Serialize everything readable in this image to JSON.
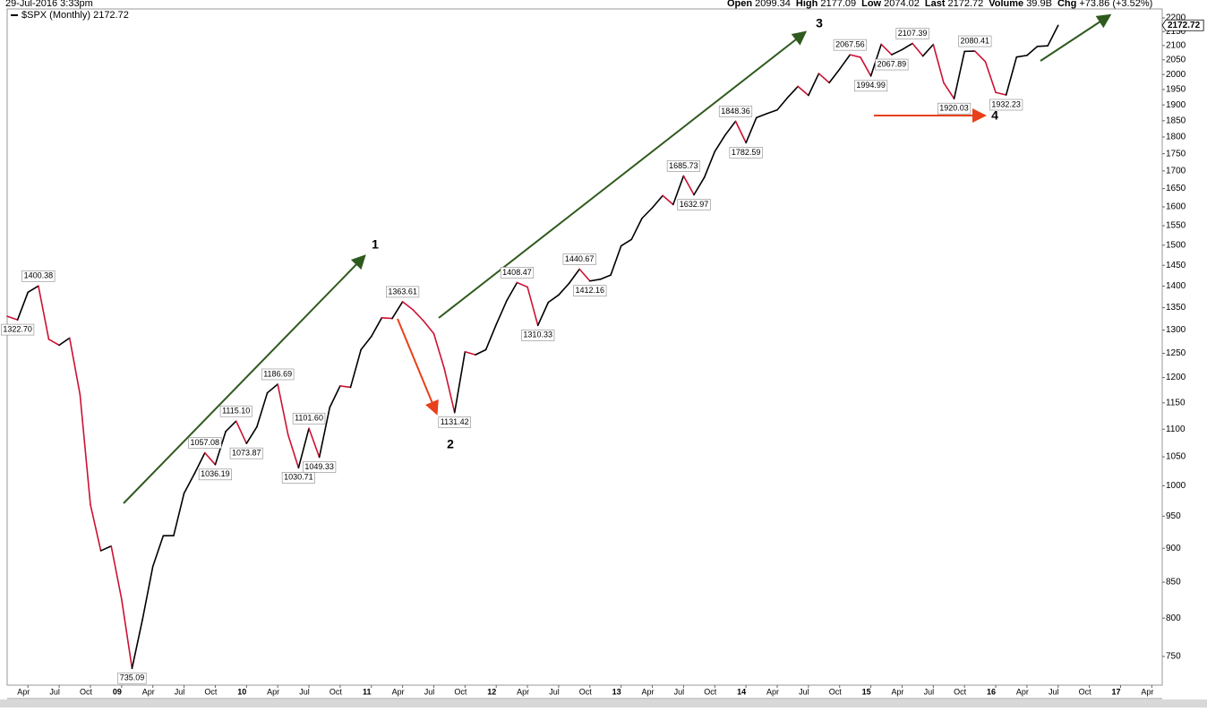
{
  "header": {
    "date": "29-Jul-2016 3:33pm",
    "fields": [
      {
        "label": "Open",
        "value": "2099.34"
      },
      {
        "label": "High",
        "value": "2177.09"
      },
      {
        "label": "Low",
        "value": "2074.02"
      },
      {
        "label": "Last",
        "value": "2172.72"
      },
      {
        "label": "Volume",
        "value": "39.9B"
      },
      {
        "label": "Chg",
        "value": "+73.86 (+3.52%)"
      }
    ]
  },
  "chart_data": {
    "type": "line",
    "log_scale": true,
    "up_color": "#000000",
    "down_color": "#cc1133",
    "x": [
      "2008-02",
      "2008-03",
      "2008-04",
      "2008-05",
      "2008-06",
      "2008-07",
      "2008-08",
      "2008-09",
      "2008-10",
      "2008-11",
      "2008-12",
      "2009-01",
      "2009-02",
      "2009-03",
      "2009-04",
      "2009-05",
      "2009-06",
      "2009-07",
      "2009-08",
      "2009-09",
      "2009-10",
      "2009-11",
      "2009-12",
      "2010-01",
      "2010-02",
      "2010-03",
      "2010-04",
      "2010-05",
      "2010-06",
      "2010-07",
      "2010-08",
      "2010-09",
      "2010-10",
      "2010-11",
      "2010-12",
      "2011-01",
      "2011-02",
      "2011-03",
      "2011-04",
      "2011-05",
      "2011-06",
      "2011-07",
      "2011-08",
      "2011-09",
      "2011-10",
      "2011-11",
      "2011-12",
      "2012-01",
      "2012-02",
      "2012-03",
      "2012-04",
      "2012-05",
      "2012-06",
      "2012-07",
      "2012-08",
      "2012-09",
      "2012-10",
      "2012-11",
      "2012-12",
      "2013-01",
      "2013-02",
      "2013-03",
      "2013-04",
      "2013-05",
      "2013-06",
      "2013-07",
      "2013-08",
      "2013-09",
      "2013-10",
      "2013-11",
      "2013-12",
      "2014-01",
      "2014-02",
      "2014-03",
      "2014-04",
      "2014-05",
      "2014-06",
      "2014-07",
      "2014-08",
      "2014-09",
      "2014-10",
      "2014-11",
      "2014-12",
      "2015-01",
      "2015-02",
      "2015-03",
      "2015-04",
      "2015-05",
      "2015-06",
      "2015-07",
      "2015-08",
      "2015-09",
      "2015-10",
      "2015-11",
      "2015-12",
      "2016-01",
      "2016-02",
      "2016-03",
      "2016-04",
      "2016-05",
      "2016-06",
      "2016-07"
    ],
    "series": [
      {
        "name": "$SPX (Monthly) 2172.72",
        "color": "#000000",
        "values": [
          1330.63,
          1322.7,
          1385.59,
          1400.38,
          1280.0,
          1267.38,
          1282.83,
          1166.36,
          968.75,
          896.24,
          903.25,
          825.88,
          735.09,
          797.87,
          872.81,
          919.14,
          919.32,
          987.48,
          1020.62,
          1057.08,
          1036.19,
          1095.63,
          1115.1,
          1073.87,
          1104.49,
          1169.43,
          1186.69,
          1089.41,
          1030.71,
          1101.6,
          1049.33,
          1141.2,
          1183.26,
          1180.55,
          1257.64,
          1286.12,
          1327.22,
          1325.83,
          1363.61,
          1345.2,
          1320.64,
          1292.28,
          1218.89,
          1131.42,
          1253.3,
          1246.96,
          1257.6,
          1312.41,
          1365.68,
          1408.47,
          1397.91,
          1310.33,
          1362.16,
          1379.32,
          1406.58,
          1440.67,
          1412.16,
          1416.18,
          1426.19,
          1498.11,
          1514.68,
          1569.19,
          1597.57,
          1630.74,
          1606.28,
          1685.73,
          1632.97,
          1681.55,
          1756.54,
          1805.81,
          1848.36,
          1782.59,
          1859.45,
          1872.34,
          1883.95,
          1923.57,
          1960.23,
          1930.67,
          2003.37,
          1972.29,
          2018.05,
          2067.56,
          2058.9,
          1994.99,
          2104.5,
          2067.89,
          2085.51,
          2107.39,
          2063.11,
          2103.84,
          1972.18,
          1920.03,
          2079.36,
          2080.41,
          2043.94,
          1940.24,
          1932.23,
          2059.74,
          2065.3,
          2096.95,
          2098.86,
          2172.72
        ],
        "value_labels": [
          null,
          "1322.70",
          null,
          "1400.38",
          null,
          null,
          null,
          null,
          null,
          null,
          null,
          null,
          "735.09",
          null,
          null,
          null,
          null,
          null,
          null,
          "1057.08",
          "1036.19",
          null,
          "1115.10",
          "1073.87",
          null,
          null,
          "1186.69",
          null,
          "1030.71",
          "1101.60",
          "1049.33",
          null,
          null,
          null,
          null,
          null,
          null,
          null,
          "1363.61",
          null,
          null,
          null,
          null,
          "1131.42",
          null,
          null,
          null,
          null,
          null,
          "1408.47",
          null,
          "1310.33",
          null,
          null,
          null,
          "1440.67",
          "1412.16",
          null,
          null,
          null,
          null,
          null,
          null,
          null,
          null,
          "1685.73",
          "1632.97",
          null,
          null,
          null,
          "1848.36",
          "1782.59",
          null,
          null,
          null,
          null,
          null,
          null,
          null,
          null,
          null,
          "2067.56",
          null,
          "1994.99",
          null,
          "2067.89",
          null,
          "2107.39",
          null,
          null,
          null,
          "1920.03",
          null,
          "2080.41",
          null,
          null,
          "1932.23",
          null,
          null,
          null,
          null,
          null
        ]
      }
    ],
    "xlim": [
      "2008-02",
      "2017-05"
    ],
    "xticks": [
      {
        "value": "2008-04",
        "label": "Apr"
      },
      {
        "value": "2008-07",
        "label": "Jul"
      },
      {
        "value": "2008-10",
        "label": "Oct"
      },
      {
        "value": "2009-01",
        "label": "09"
      },
      {
        "value": "2009-04",
        "label": "Apr"
      },
      {
        "value": "2009-07",
        "label": "Jul"
      },
      {
        "value": "2009-10",
        "label": "Oct"
      },
      {
        "value": "2010-01",
        "label": "10"
      },
      {
        "value": "2010-04",
        "label": "Apr"
      },
      {
        "value": "2010-07",
        "label": "Jul"
      },
      {
        "value": "2010-10",
        "label": "Oct"
      },
      {
        "value": "2011-01",
        "label": "11"
      },
      {
        "value": "2011-04",
        "label": "Apr"
      },
      {
        "value": "2011-07",
        "label": "Jul"
      },
      {
        "value": "2011-10",
        "label": "Oct"
      },
      {
        "value": "2012-01",
        "label": "12"
      },
      {
        "value": "2012-04",
        "label": "Apr"
      },
      {
        "value": "2012-07",
        "label": "Jul"
      },
      {
        "value": "2012-10",
        "label": "Oct"
      },
      {
        "value": "2013-01",
        "label": "13"
      },
      {
        "value": "2013-04",
        "label": "Apr"
      },
      {
        "value": "2013-07",
        "label": "Jul"
      },
      {
        "value": "2013-10",
        "label": "Oct"
      },
      {
        "value": "2014-01",
        "label": "14"
      },
      {
        "value": "2014-04",
        "label": "Apr"
      },
      {
        "value": "2014-07",
        "label": "Jul"
      },
      {
        "value": "2014-10",
        "label": "Oct"
      },
      {
        "value": "2015-01",
        "label": "15"
      },
      {
        "value": "2015-04",
        "label": "Apr"
      },
      {
        "value": "2015-07",
        "label": "Jul"
      },
      {
        "value": "2015-10",
        "label": "Oct"
      },
      {
        "value": "2016-01",
        "label": "16"
      },
      {
        "value": "2016-04",
        "label": "Apr"
      },
      {
        "value": "2016-07",
        "label": "Jul"
      },
      {
        "value": "2016-10",
        "label": "Oct"
      },
      {
        "value": "2017-01",
        "label": "17"
      },
      {
        "value": "2017-04",
        "label": "Apr"
      }
    ],
    "ylim": [
      714.6,
      2233.5
    ],
    "yticks": [
      750,
      800,
      850,
      900,
      950,
      1000,
      1050,
      1100,
      1150,
      1200,
      1250,
      1300,
      1350,
      1400,
      1450,
      1500,
      1550,
      1600,
      1650,
      1700,
      1750,
      1800,
      1850,
      1900,
      1950,
      2000,
      2050,
      2100,
      2150,
      2200
    ],
    "annotations": [
      "1",
      "2",
      "3",
      "4"
    ]
  }
}
